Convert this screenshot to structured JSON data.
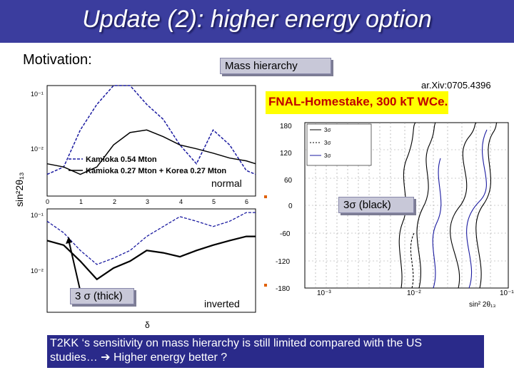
{
  "slide": {
    "title": "Update (2): higher energy option",
    "motivation": "Motivation:",
    "mass_hierarchy": "Mass hierarchy",
    "arxiv": "ar.Xiv:0705.4396",
    "fnal_title": "FNAL-Homestake, 300 kT WCe.",
    "three_sigma_black": "3σ (black)",
    "three_sigma_thick": "3 σ (thick)",
    "bottom_text_1": "T2KK ‘s sensitivity on mass hierarchy is still limited compared with the US",
    "bottom_text_2": "studies…               ➔ Higher energy better ?"
  },
  "left_plot": {
    "ylabel": "sin²2θ₁₃",
    "xlabel": "δ",
    "top_panel": {
      "y_tick_top": "10⁻¹",
      "y_tick_mid": "10⁻²",
      "legend": [
        "Kamioka 0.54 Mton",
        "Kamioka 0.27 Mton + Korea 0.27 Mton"
      ],
      "label": "normal"
    },
    "bottom_panel": {
      "y_tick_top": "10⁻¹",
      "y_tick_mid": "10⁻²",
      "label": "inverted"
    },
    "x_ticks": [
      "0",
      "1",
      "2",
      "3",
      "4",
      "5",
      "6"
    ]
  },
  "right_plot": {
    "y_ticks": [
      "180",
      "120",
      "60",
      "0",
      "-60",
      "-120",
      "-180"
    ],
    "x_ticks": [
      "10⁻³",
      "10⁻²",
      "10⁻¹"
    ],
    "xlabel": "sin² 2θ₁₃",
    "legend": [
      "3σ",
      "3σ",
      "3σ"
    ]
  },
  "chart_data": [
    {
      "type": "line",
      "title": "normal",
      "xlabel": "δ",
      "ylabel": "sin²2θ₁₃",
      "x": [
        0,
        0.5,
        1,
        1.5,
        2,
        2.5,
        3,
        3.5,
        4,
        4.5,
        5,
        5.5,
        6,
        6.28
      ],
      "ylim": [
        0.005,
        0.1
      ],
      "yscale": "log",
      "series": [
        {
          "name": "Kamioka 0.54 Mton",
          "values": [
            0.009,
            0.011,
            0.03,
            0.06,
            0.1,
            0.1,
            0.06,
            0.04,
            0.02,
            0.012,
            0.03,
            0.02,
            0.01,
            0.009
          ]
        },
        {
          "name": "Kamioka 0.27 Mton + Korea 0.27 Mton",
          "values": [
            0.012,
            0.011,
            0.009,
            0.011,
            0.02,
            0.028,
            0.03,
            0.025,
            0.02,
            0.018,
            0.016,
            0.014,
            0.013,
            0.012
          ]
        }
      ]
    },
    {
      "type": "line",
      "title": "inverted",
      "xlabel": "δ",
      "ylabel": "sin²2θ₁₃",
      "x": [
        0,
        0.5,
        1,
        1.5,
        2,
        2.5,
        3,
        3.5,
        4,
        4.5,
        5,
        5.5,
        6,
        6.28
      ],
      "ylim": [
        0.005,
        0.1
      ],
      "yscale": "log",
      "series": [
        {
          "values": [
            0.04,
            0.035,
            0.022,
            0.013,
            0.018,
            0.022,
            0.03,
            0.028,
            0.025,
            0.03,
            0.035,
            0.04,
            0.045,
            0.045
          ]
        },
        {
          "values": [
            0.07,
            0.05,
            0.03,
            0.02,
            0.024,
            0.03,
            0.045,
            0.06,
            0.08,
            0.07,
            0.06,
            0.07,
            0.09,
            0.09
          ]
        }
      ]
    }
  ]
}
